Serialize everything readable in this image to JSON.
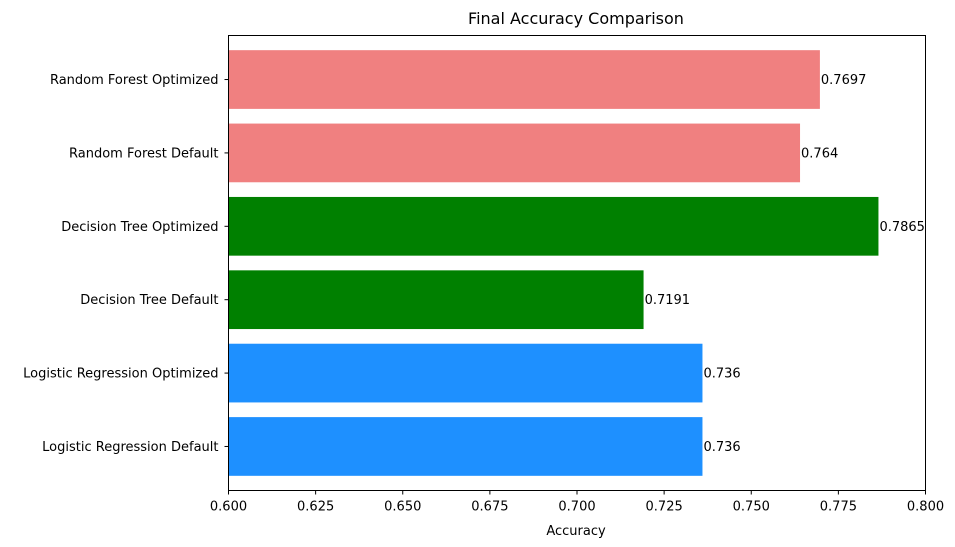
{
  "chart_data": {
    "type": "bar",
    "orientation": "horizontal",
    "title": "Final Accuracy Comparison",
    "xlabel": "Accuracy",
    "ylabel": "",
    "xlim": [
      0.6,
      0.8
    ],
    "x_ticks": [
      "0.600",
      "0.625",
      "0.650",
      "0.675",
      "0.700",
      "0.725",
      "0.750",
      "0.775",
      "0.800"
    ],
    "grid": false,
    "categories": [
      "Logistic Regression Default",
      "Logistic Regression Optimized",
      "Decision Tree Default",
      "Decision Tree Optimized",
      "Random Forest Default",
      "Random Forest Optimized"
    ],
    "values": [
      0.736,
      0.736,
      0.7191,
      0.7865,
      0.764,
      0.7697
    ],
    "data_labels": [
      "0.736",
      "0.736",
      "0.7191",
      "0.7865",
      "0.764",
      "0.7697"
    ],
    "bar_colors": [
      "#1E90FF",
      "#1E90FF",
      "#008000",
      "#008000",
      "#F08080",
      "#F08080"
    ]
  }
}
